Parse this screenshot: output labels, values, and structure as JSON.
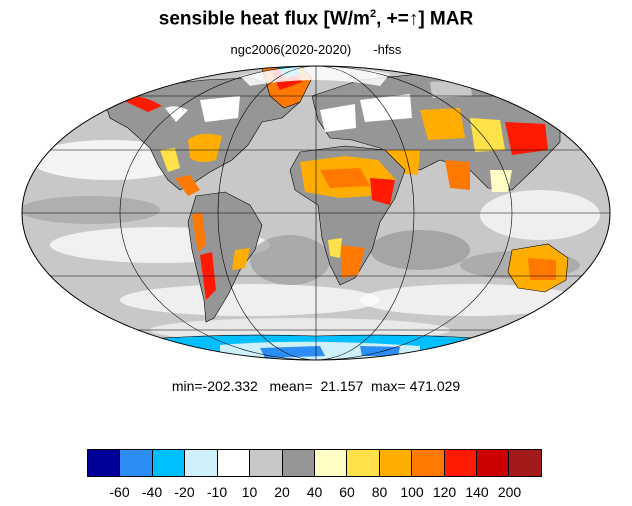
{
  "title": {
    "main": "sensible heat flux [W/m",
    "sup": "2",
    "rest": ", +=↑]  MAR"
  },
  "subtitle": {
    "experiment": "ngc2006(2020-2020)",
    "variable": "-hfss"
  },
  "stats": {
    "min": "-202.332",
    "mean": "21.157",
    "max": "471.029",
    "text": "min=-202.332   mean=  21.157  max= 471.029"
  },
  "colorbar": {
    "colors": [
      "#000099",
      "#2c8ef5",
      "#00bfff",
      "#cdf0fb",
      "#ffffff",
      "#c8c8c8",
      "#969696",
      "#fffcc4",
      "#ffe24a",
      "#ffad00",
      "#ff7800",
      "#ff1a00",
      "#cc0000",
      "#a31a1a"
    ],
    "labels": [
      "-60",
      "-40",
      "-20",
      "-10",
      "10",
      "20",
      "40",
      "60",
      "80",
      "100",
      "120",
      "140",
      "200"
    ]
  },
  "map": {
    "projection": "mollweide",
    "ocean_color": "#c8c8c8",
    "land_colors": {
      "warm": "#ff7800",
      "hot": "#ff1a00",
      "cold": "#2c8ef5"
    }
  }
}
